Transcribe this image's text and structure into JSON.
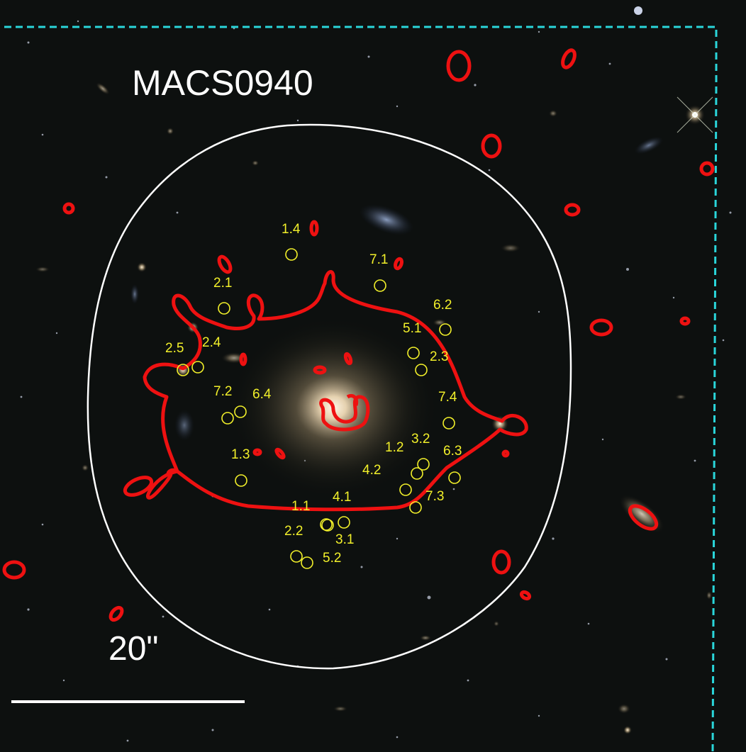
{
  "image": {
    "cluster_name": "MACS0940",
    "scale_bar_label": "20\"",
    "colors": {
      "critical_curve": "#ee1111",
      "region_outline": "#ffffff",
      "footprint": "#2ad6da",
      "multiple_image_marker": "#f2f02a",
      "background": "#0a0b08"
    },
    "multiple_images": [
      {
        "id": "1.4"
      },
      {
        "id": "7.1"
      },
      {
        "id": "2.1"
      },
      {
        "id": "6.2"
      },
      {
        "id": "5.1"
      },
      {
        "id": "2.3"
      },
      {
        "id": "2.5"
      },
      {
        "id": "2.4"
      },
      {
        "id": "7.2"
      },
      {
        "id": "6.4"
      },
      {
        "id": "7.4"
      },
      {
        "id": "1.3"
      },
      {
        "id": "1.2"
      },
      {
        "id": "3.2"
      },
      {
        "id": "6.3"
      },
      {
        "id": "4.2"
      },
      {
        "id": "7.3"
      },
      {
        "id": "1.1"
      },
      {
        "id": "4.1"
      },
      {
        "id": "2.2"
      },
      {
        "id": "3.1"
      },
      {
        "id": "5.2"
      }
    ]
  }
}
